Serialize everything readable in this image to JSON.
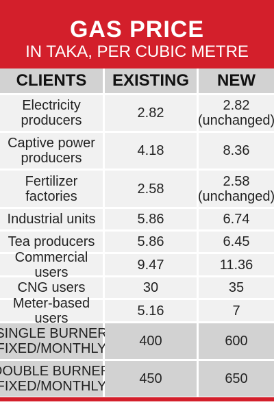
{
  "header": {
    "title": "GAS PRICE",
    "subtitle": "IN TAKA, PER CUBIC METRE"
  },
  "columns": {
    "clients": "CLIENTS",
    "existing": "EXISTING",
    "new": "NEW"
  },
  "rows": [
    {
      "client": "Electricity producers",
      "existing": "2.82",
      "new": "2.82 (unchanged)"
    },
    {
      "client": "Captive power producers",
      "existing": "4.18",
      "new": "8.36"
    },
    {
      "client": "Fertilizer factories",
      "existing": "2.58",
      "new": "2.58 (unchanged)"
    },
    {
      "client": "Industrial units",
      "existing": "5.86",
      "new": "6.74"
    },
    {
      "client": "Tea producers",
      "existing": "5.86",
      "new": "6.45"
    },
    {
      "client": "Commercial users",
      "existing": "9.47",
      "new": "11.36"
    },
    {
      "client": "CNG users",
      "existing": "30",
      "new": "35"
    },
    {
      "client": "Meter-based users",
      "existing": "5.16",
      "new": "7"
    },
    {
      "client": "SINGLE BURNER (FIXED/MONTHLY)",
      "existing": "400",
      "new": "600"
    },
    {
      "client": "DOUBLE BURNER (FIXED/MONTHLY)",
      "existing": "450",
      "new": "650"
    }
  ],
  "chart_data": {
    "type": "table",
    "title": "GAS PRICE",
    "subtitle": "IN TAKA, PER CUBIC METRE",
    "columns": [
      "CLIENTS",
      "EXISTING",
      "NEW"
    ],
    "categories": [
      "Electricity producers",
      "Captive power producers",
      "Fertilizer factories",
      "Industrial units",
      "Tea producers",
      "Commercial users",
      "CNG users",
      "Meter-based users",
      "SINGLE BURNER (FIXED/MONTHLY)",
      "DOUBLE BURNER (FIXED/MONTHLY)"
    ],
    "series": [
      {
        "name": "EXISTING",
        "values": [
          2.82,
          4.18,
          2.58,
          5.86,
          5.86,
          9.47,
          30,
          5.16,
          400,
          450
        ]
      },
      {
        "name": "NEW",
        "values": [
          2.82,
          8.36,
          2.58,
          6.74,
          6.45,
          11.36,
          35,
          7,
          600,
          650
        ]
      }
    ]
  },
  "colors": {
    "header_red": "#d31f2b",
    "row_light": "#f1f1f1",
    "row_shaded": "#d2d2d2"
  }
}
